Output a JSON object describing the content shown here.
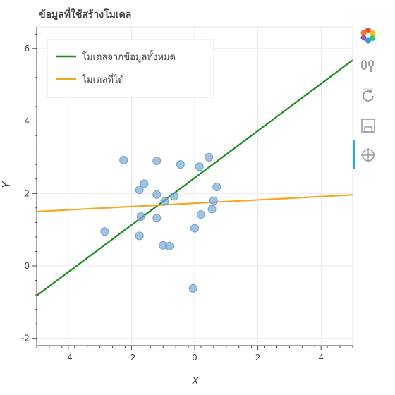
{
  "chart_data": {
    "type": "scatter",
    "title": "ข้อมูลที่ใช้สร้างโมเดล",
    "xlabel": "X",
    "ylabel": "Y",
    "xlim": [
      -5,
      5
    ],
    "ylim": [
      -2.2,
      6.6
    ],
    "x_ticks": [
      -4,
      -2,
      0,
      2,
      4
    ],
    "y_ticks": [
      -2,
      0,
      2,
      4,
      6
    ],
    "x_tick_labels": [
      "-4",
      "-2",
      "0",
      "2",
      "4"
    ],
    "y_tick_labels": [
      "-2",
      "0",
      "2",
      "4",
      "6"
    ],
    "grid": true,
    "legend_position": "top-left",
    "points": [
      {
        "x": -2.85,
        "y": 0.95
      },
      {
        "x": -2.25,
        "y": 2.92
      },
      {
        "x": -1.75,
        "y": 2.1
      },
      {
        "x": -1.6,
        "y": 2.27
      },
      {
        "x": -1.7,
        "y": 1.36
      },
      {
        "x": -1.75,
        "y": 0.83
      },
      {
        "x": -1.2,
        "y": 2.9
      },
      {
        "x": -1.2,
        "y": 1.97
      },
      {
        "x": -1.2,
        "y": 1.32
      },
      {
        "x": -0.95,
        "y": 1.78
      },
      {
        "x": -0.65,
        "y": 1.92
      },
      {
        "x": -1.0,
        "y": 0.57
      },
      {
        "x": -0.8,
        "y": 0.55
      },
      {
        "x": -0.45,
        "y": 2.8
      },
      {
        "x": 0.15,
        "y": 2.74
      },
      {
        "x": 0.45,
        "y": 3.0
      },
      {
        "x": 0.7,
        "y": 2.18
      },
      {
        "x": 0.6,
        "y": 1.8
      },
      {
        "x": 0.55,
        "y": 1.57
      },
      {
        "x": 0.2,
        "y": 1.42
      },
      {
        "x": 0.0,
        "y": 1.04
      },
      {
        "x": -0.05,
        "y": -0.62
      }
    ],
    "series": [
      {
        "name": "โมเดลจากข้อมูลทั้งหมด",
        "x": [
          -5,
          5
        ],
        "y": [
          -0.82,
          5.68
        ],
        "color": "#1a8a1a"
      },
      {
        "name": "โมเดลที่ได้",
        "x": [
          -5,
          5
        ],
        "y": [
          1.5,
          1.96
        ],
        "color": "#f5a623"
      }
    ],
    "point_color": "#6fa1cf"
  },
  "toolbar": {
    "tools": [
      "bokeh-logo-icon",
      "pan-icon",
      "reset-icon",
      "save-icon",
      "hover-icon"
    ]
  }
}
